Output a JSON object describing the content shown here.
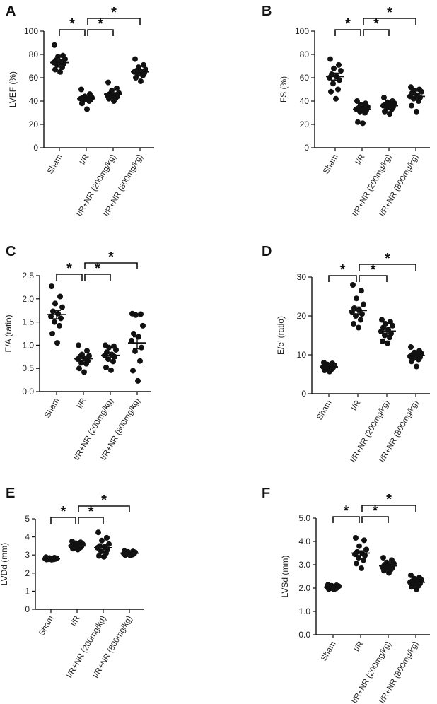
{
  "chart_data": [
    {
      "panel": "A",
      "type": "scatter",
      "ylabel": "LVEF (%)",
      "categories": [
        "Sham",
        "I/R",
        "I/R+NR (200mg/kg)",
        "I/R+NR (800mg/kg)"
      ],
      "ylim": [
        0,
        100
      ],
      "yticks": [
        0,
        20,
        40,
        60,
        80,
        100
      ],
      "series": [
        {
          "name": "Sham",
          "values": [
            88,
            79,
            78,
            76,
            75,
            74,
            73,
            72,
            71,
            69,
            67,
            65
          ],
          "mean": 73,
          "sem": 1.9
        },
        {
          "name": "I/R",
          "values": [
            50,
            46,
            44,
            43,
            43,
            42,
            42,
            41,
            41,
            40,
            38,
            33
          ],
          "mean": 42,
          "sem": 1.2
        },
        {
          "name": "I/R+NR (200mg/kg)",
          "values": [
            56,
            51,
            49,
            47,
            46,
            45,
            45,
            44,
            44,
            43,
            42,
            40
          ],
          "mean": 46,
          "sem": 1.3
        },
        {
          "name": "I/R+NR (800mg/kg)",
          "values": [
            76,
            71,
            69,
            67,
            66,
            65,
            65,
            64,
            63,
            62,
            60,
            57
          ],
          "mean": 65,
          "sem": 1.4
        }
      ],
      "comparisons": [
        {
          "groups": [
            "Sham",
            "I/R"
          ],
          "label": "*"
        },
        {
          "groups": [
            "I/R",
            "I/R+NR (200mg/kg)"
          ],
          "label": "*"
        },
        {
          "groups": [
            "I/R",
            "I/R+NR (800mg/kg)"
          ],
          "label": "*"
        }
      ]
    },
    {
      "panel": "B",
      "type": "scatter",
      "ylabel": "FS (%)",
      "categories": [
        "Sham",
        "I/R",
        "I/R+NR (200mg/kg)",
        "I/R+NR (800mg/kg)"
      ],
      "ylim": [
        0,
        100
      ],
      "yticks": [
        0,
        20,
        40,
        60,
        80,
        100
      ],
      "series": [
        {
          "name": "Sham",
          "values": [
            76,
            71,
            68,
            66,
            63,
            61,
            60,
            58,
            55,
            50,
            48,
            42
          ],
          "mean": 61,
          "sem": 3.0
        },
        {
          "name": "I/R",
          "values": [
            40,
            38,
            37,
            35,
            34,
            34,
            33,
            32,
            31,
            30,
            22,
            21
          ],
          "mean": 33,
          "sem": 1.8
        },
        {
          "name": "I/R+NR (200mg/kg)",
          "values": [
            43,
            40,
            39,
            38,
            37,
            37,
            36,
            35,
            34,
            33,
            31,
            29
          ],
          "mean": 36,
          "sem": 1.2
        },
        {
          "name": "I/R+NR (800mg/kg)",
          "values": [
            52,
            50,
            49,
            48,
            47,
            45,
            44,
            43,
            42,
            40,
            36,
            31
          ],
          "mean": 44,
          "sem": 1.7
        }
      ],
      "comparisons": [
        {
          "groups": [
            "Sham",
            "I/R"
          ],
          "label": "*"
        },
        {
          "groups": [
            "I/R",
            "I/R+NR (200mg/kg)"
          ],
          "label": "*"
        },
        {
          "groups": [
            "I/R",
            "I/R+NR (800mg/kg)"
          ],
          "label": "*"
        }
      ]
    },
    {
      "panel": "C",
      "type": "scatter",
      "ylabel": "E/A (ratio)",
      "categories": [
        "Sham",
        "I/R",
        "I/R+NR (200mg/kg)",
        "I/R+NR (800mg/kg)"
      ],
      "ylim": [
        0,
        2.5
      ],
      "yticks": [
        0.0,
        0.5,
        1.0,
        1.5,
        2.0,
        2.5
      ],
      "tick_decimals": 1,
      "series": [
        {
          "name": "Sham",
          "values": [
            2.27,
            2.05,
            1.9,
            1.82,
            1.73,
            1.68,
            1.62,
            1.58,
            1.5,
            1.42,
            1.25,
            1.05
          ],
          "mean": 1.66,
          "sem": 0.09
        },
        {
          "name": "I/R",
          "values": [
            1.0,
            0.88,
            0.8,
            0.77,
            0.75,
            0.72,
            0.7,
            0.66,
            0.62,
            0.6,
            0.5,
            0.42
          ],
          "mean": 0.71,
          "sem": 0.05
        },
        {
          "name": "I/R+NR (200mg/kg)",
          "values": [
            1.0,
            0.98,
            0.95,
            0.9,
            0.85,
            0.8,
            0.78,
            0.75,
            0.7,
            0.65,
            0.52,
            0.46
          ],
          "mean": 0.78,
          "sem": 0.05
        },
        {
          "name": "I/R+NR (800mg/kg)",
          "values": [
            1.68,
            1.67,
            1.65,
            1.42,
            1.25,
            1.18,
            1.1,
            0.95,
            0.87,
            0.66,
            0.45,
            0.23
          ],
          "mean": 1.05,
          "sem": 0.13
        }
      ],
      "comparisons": [
        {
          "groups": [
            "Sham",
            "I/R"
          ],
          "label": "*"
        },
        {
          "groups": [
            "I/R",
            "I/R+NR (200mg/kg)"
          ],
          "label": "*"
        },
        {
          "groups": [
            "I/R",
            "I/R+NR (800mg/kg)"
          ],
          "label": "*"
        }
      ]
    },
    {
      "panel": "D",
      "type": "scatter",
      "ylabel": "E/e’ (ratio)",
      "categories": [
        "Sham",
        "I/R",
        "I/R+NR (200mg/kg)",
        "I/R+NR (800mg/kg)"
      ],
      "ylim": [
        0,
        30
      ],
      "yticks": [
        0,
        10,
        20,
        30
      ],
      "series": [
        {
          "name": "Sham",
          "values": [
            8.0,
            7.8,
            7.5,
            7.3,
            7.1,
            7.0,
            6.9,
            6.7,
            6.5,
            6.3,
            6.0,
            5.7
          ],
          "mean": 6.9,
          "sem": 0.2
        },
        {
          "name": "I/R",
          "values": [
            28.0,
            26.5,
            24.5,
            23.0,
            22.0,
            21.5,
            21.0,
            20.5,
            20.0,
            19.0,
            18.0,
            17.0
          ],
          "mean": 21.4,
          "sem": 0.9
        },
        {
          "name": "I/R+NR (200mg/kg)",
          "values": [
            19.0,
            18.5,
            18.0,
            17.5,
            17.0,
            16.5,
            16.0,
            15.5,
            15.0,
            14.5,
            13.5,
            13.0
          ],
          "mean": 16.1,
          "sem": 0.5
        },
        {
          "name": "I/R+NR (800mg/kg)",
          "values": [
            12.0,
            11.0,
            10.6,
            10.3,
            10.0,
            9.8,
            9.6,
            9.4,
            9.1,
            8.8,
            8.3,
            7.0
          ],
          "mean": 9.8,
          "sem": 0.4
        }
      ],
      "comparisons": [
        {
          "groups": [
            "Sham",
            "I/R"
          ],
          "label": "*"
        },
        {
          "groups": [
            "I/R",
            "I/R+NR (200mg/kg)"
          ],
          "label": "*"
        },
        {
          "groups": [
            "I/R",
            "I/R+NR (800mg/kg)"
          ],
          "label": "*"
        }
      ]
    },
    {
      "panel": "E",
      "type": "scatter",
      "ylabel": "LVDd (mm)",
      "categories": [
        "Sham",
        "I/R",
        "I/R+NR (200mg/kg)",
        "I/R+NR (800mg/kg)"
      ],
      "ylim": [
        0,
        5
      ],
      "yticks": [
        0,
        1,
        2,
        3,
        4,
        5
      ],
      "series": [
        {
          "name": "Sham",
          "values": [
            2.88,
            2.85,
            2.83,
            2.82,
            2.81,
            2.8,
            2.79,
            2.78,
            2.77,
            2.76,
            2.75,
            2.74
          ],
          "mean": 2.79,
          "sem": 0.02
        },
        {
          "name": "I/R",
          "values": [
            3.75,
            3.7,
            3.65,
            3.6,
            3.55,
            3.5,
            3.48,
            3.45,
            3.42,
            3.4,
            3.35,
            3.3
          ],
          "mean": 3.5,
          "sem": 0.04
        },
        {
          "name": "I/R+NR (200mg/kg)",
          "values": [
            4.25,
            3.95,
            3.8,
            3.6,
            3.5,
            3.45,
            3.4,
            3.3,
            3.2,
            3.1,
            2.95,
            2.9
          ],
          "mean": 3.4,
          "sem": 0.12
        },
        {
          "name": "I/R+NR (800mg/kg)",
          "values": [
            3.22,
            3.2,
            3.17,
            3.15,
            3.12,
            3.1,
            3.08,
            3.06,
            3.05,
            3.02,
            3.0,
            2.98
          ],
          "mean": 3.1,
          "sem": 0.02
        }
      ],
      "comparisons": [
        {
          "groups": [
            "Sham",
            "I/R"
          ],
          "label": "*"
        },
        {
          "groups": [
            "I/R",
            "I/R+NR (200mg/kg)"
          ],
          "label": "*"
        },
        {
          "groups": [
            "I/R",
            "I/R+NR (800mg/kg)"
          ],
          "label": "*"
        }
      ]
    },
    {
      "panel": "F",
      "type": "scatter",
      "ylabel": "LVSd (mm)",
      "categories": [
        "Sham",
        "I/R",
        "I/R+NR (200mg/kg)",
        "I/R+NR (800mg/kg)"
      ],
      "ylim": [
        0,
        5
      ],
      "yticks": [
        0.0,
        1.0,
        2.0,
        3.0,
        4.0,
        5.0
      ],
      "tick_decimals": 1,
      "series": [
        {
          "name": "Sham",
          "values": [
            2.15,
            2.12,
            2.1,
            2.08,
            2.06,
            2.05,
            2.03,
            2.02,
            2.0,
            1.98,
            1.96,
            1.94
          ],
          "mean": 2.04,
          "sem": 0.02
        },
        {
          "name": "I/R",
          "values": [
            4.15,
            4.05,
            3.8,
            3.65,
            3.55,
            3.5,
            3.45,
            3.4,
            3.3,
            3.2,
            3.05,
            2.85
          ],
          "mean": 3.5,
          "sem": 0.1
        },
        {
          "name": "I/R+NR (200mg/kg)",
          "values": [
            3.3,
            3.2,
            3.1,
            3.05,
            3.0,
            2.95,
            2.9,
            2.88,
            2.85,
            2.8,
            2.75,
            2.65
          ],
          "mean": 2.95,
          "sem": 0.05
        },
        {
          "name": "I/R+NR (800mg/kg)",
          "values": [
            2.55,
            2.45,
            2.4,
            2.35,
            2.3,
            2.28,
            2.25,
            2.2,
            2.15,
            2.1,
            2.05,
            1.95
          ],
          "mean": 2.25,
          "sem": 0.05
        }
      ],
      "comparisons": [
        {
          "groups": [
            "Sham",
            "I/R"
          ],
          "label": "*"
        },
        {
          "groups": [
            "I/R",
            "I/R+NR (200mg/kg)"
          ],
          "label": "*"
        },
        {
          "groups": [
            "I/R",
            "I/R+NR (800mg/kg)"
          ],
          "label": "*"
        }
      ]
    }
  ]
}
